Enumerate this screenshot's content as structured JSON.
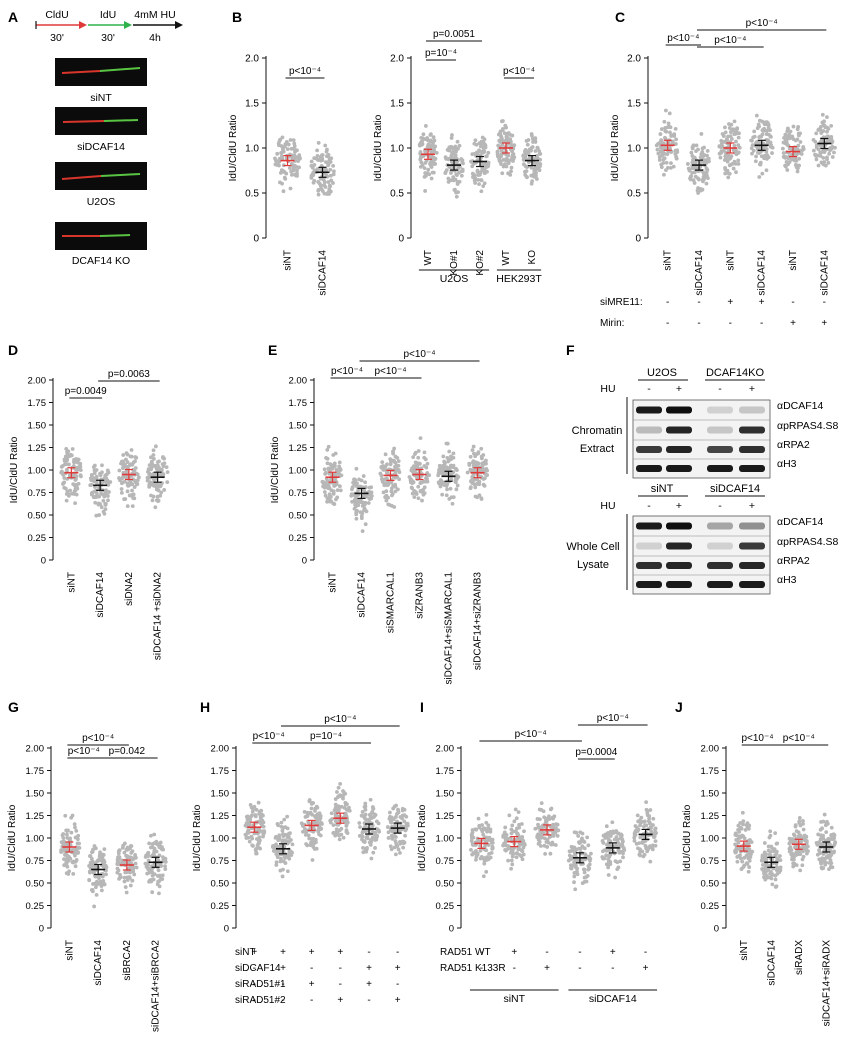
{
  "panel_letters": [
    "A",
    "B",
    "C",
    "D",
    "E",
    "F",
    "G",
    "H",
    "I",
    "J"
  ],
  "ylabel": "IdU/CldU Ratio",
  "colors": {
    "red": "#e03a3a",
    "black": "#111111",
    "dots": "#b7b7b7",
    "green": "#2fb24a",
    "fiber_red": "#d8352b",
    "fiber_green": "#59c343"
  },
  "panelA": {
    "timeline": {
      "labels": [
        "CldU",
        "IdU",
        "4mM HU"
      ],
      "durations": [
        "30'",
        "30'",
        "4h"
      ]
    },
    "fibers": [
      "siNT",
      "siDCAF14",
      "U2OS",
      "DCAF14 KO"
    ]
  },
  "panelF": {
    "top": {
      "groups": [
        "U2OS",
        "DCAF14KO"
      ],
      "hu_label": "HU",
      "hu": [
        "-",
        "+",
        "-",
        "+"
      ],
      "side_labels": [
        "Chromatin",
        "Extract"
      ],
      "bands": [
        "αDCAF14",
        "αpRPAS4.S8",
        "αRPA2",
        "αH3"
      ]
    },
    "bottom": {
      "groups": [
        "siNT",
        "siDCAF14"
      ],
      "hu_label": "HU",
      "hu": [
        "-",
        "+",
        "-",
        "+"
      ],
      "side_labels": [
        "Whole Cell",
        "Lysate"
      ],
      "bands": [
        "αDCAF14",
        "αpRPAS4.S8",
        "αRPA2",
        "αH3"
      ]
    }
  },
  "chart_data": [
    {
      "panel": "B1",
      "type": "scatter",
      "ylabel": "IdU/CldU Ratio",
      "ylim": [
        0,
        2
      ],
      "yticks": [
        "0",
        "0.5",
        "1.0",
        "1.5",
        "2.0"
      ],
      "categories": [
        "siNT",
        "siDCAF14"
      ],
      "means": [
        0.86,
        0.73
      ],
      "mean_colors": [
        "red",
        "black"
      ],
      "brackets": [
        {
          "from": 0,
          "to": 1,
          "label": "p<10⁻⁴"
        }
      ]
    },
    {
      "panel": "B2",
      "type": "scatter",
      "ylabel": "IdU/CldU Ratio",
      "ylim": [
        0,
        2
      ],
      "yticks": [
        "0",
        "0.5",
        "1.0",
        "1.5",
        "2.0"
      ],
      "categories": [
        "WT",
        "KO#1",
        "KO#2",
        "WT",
        "KO"
      ],
      "means": [
        0.93,
        0.81,
        0.85,
        1.0,
        0.86
      ],
      "mean_colors": [
        "red",
        "black",
        "black",
        "red",
        "black"
      ],
      "brackets": [
        {
          "from": 0,
          "to": 2,
          "label": "p=0.0051"
        },
        {
          "from": 0,
          "to": 1,
          "label": "p=10⁻⁴"
        },
        {
          "from": 3,
          "to": 4,
          "label": "p<10⁻⁴"
        }
      ],
      "groups": [
        {
          "label": "U2OS",
          "from": 0,
          "to": 2
        },
        {
          "label": "HEK293T",
          "from": 3,
          "to": 4
        }
      ]
    },
    {
      "panel": "C",
      "type": "scatter",
      "ylabel": "IdU/CldU Ratio",
      "ylim": [
        0,
        2
      ],
      "yticks": [
        "0",
        "0.5",
        "1.0",
        "1.5",
        "2.0"
      ],
      "categories": [
        "siNT",
        "siDCAF14",
        "siNT",
        "siDCAF14",
        "siNT",
        "siDCAF14"
      ],
      "means": [
        1.03,
        0.81,
        1.0,
        1.03,
        0.96,
        1.05
      ],
      "mean_colors": [
        "red",
        "black",
        "red",
        "black",
        "red",
        "black"
      ],
      "brackets": [
        {
          "from": 1,
          "to": 5,
          "label": "p<10⁻⁴"
        },
        {
          "from": 0,
          "to": 1,
          "label": "p<10⁻⁴"
        },
        {
          "from": 1,
          "to": 3,
          "label": "p<10⁻⁴"
        }
      ],
      "conditions": [
        {
          "label": "siMRE11:",
          "values": [
            "-",
            "-",
            "+",
            "+",
            "-",
            "-"
          ]
        },
        {
          "label": "Mirin:",
          "values": [
            "-",
            "-",
            "-",
            "-",
            "+",
            "+"
          ]
        }
      ]
    },
    {
      "panel": "D",
      "type": "scatter",
      "ylabel": "IdU/CldU Ratio",
      "ylim": [
        0,
        2
      ],
      "yticks": [
        "0",
        "0.25",
        "0.50",
        "0.75",
        "1.00",
        "1.25",
        "1.50",
        "1.75",
        "2.00"
      ],
      "categories": [
        "siNT",
        "siDCAF14",
        "siDNA2",
        "siDCAF14 +siDNA2"
      ],
      "means": [
        0.97,
        0.83,
        0.95,
        0.92
      ],
      "mean_colors": [
        "red",
        "black",
        "red",
        "black"
      ],
      "brackets": [
        {
          "from": 0,
          "to": 1,
          "label": "p=0.0049"
        },
        {
          "from": 1,
          "to": 3,
          "label": "p=0.0063"
        }
      ]
    },
    {
      "panel": "E",
      "type": "scatter",
      "ylabel": "IdU/CldU Ratio",
      "ylim": [
        0,
        2
      ],
      "yticks": [
        "0",
        "0.25",
        "0.50",
        "0.75",
        "1.00",
        "1.25",
        "1.50",
        "1.75",
        "2.00"
      ],
      "categories": [
        "siNT",
        "siDCAF14",
        "siSMARCAL1",
        "siZRANB3",
        "siDCAF14+siSMARCAL1",
        "siDCAF14+siZRANB3"
      ],
      "means": [
        0.92,
        0.74,
        0.94,
        0.95,
        0.93,
        0.97
      ],
      "mean_colors": [
        "red",
        "black",
        "red",
        "red",
        "black",
        "red"
      ],
      "brackets": [
        {
          "from": 1,
          "to": 5,
          "label": "p<10⁻⁴"
        },
        {
          "from": 0,
          "to": 1,
          "label": "p<10⁻⁴"
        },
        {
          "from": 1,
          "to": 3,
          "label": "p<10⁻⁴"
        }
      ]
    },
    {
      "panel": "G",
      "type": "scatter",
      "ylabel": "IdU/CldU Ratio",
      "ylim": [
        0,
        2
      ],
      "yticks": [
        "0",
        "0.25",
        "0.50",
        "0.75",
        "1.00",
        "1.25",
        "1.50",
        "1.75",
        "2.00"
      ],
      "categories": [
        "siNT",
        "siDCAF14",
        "siBRCA2",
        "siDCAF14+siBRCA2"
      ],
      "means": [
        0.9,
        0.65,
        0.7,
        0.73
      ],
      "mean_colors": [
        "red",
        "black",
        "red",
        "black"
      ],
      "brackets": [
        {
          "from": 0,
          "to": 2,
          "label": "p<10⁻⁴"
        },
        {
          "from": 0,
          "to": 1,
          "label": "p<10⁻⁴"
        },
        {
          "from": 1,
          "to": 3,
          "label": "p=0.042"
        }
      ]
    },
    {
      "panel": "H",
      "type": "scatter",
      "ylabel": "IdU/CldU Ratio",
      "ylim": [
        0,
        2
      ],
      "yticks": [
        "0",
        "0.25",
        "0.50",
        "0.75",
        "1.00",
        "1.25",
        "1.50",
        "1.75",
        "2.00"
      ],
      "categories": [
        "1",
        "2",
        "3",
        "4",
        "5",
        "6"
      ],
      "means": [
        1.12,
        0.88,
        1.14,
        1.22,
        1.1,
        1.11
      ],
      "mean_colors": [
        "red",
        "black",
        "red",
        "red",
        "black",
        "black"
      ],
      "brackets": [
        {
          "from": 1,
          "to": 5,
          "label": "p<10⁻⁴"
        },
        {
          "from": 0,
          "to": 1,
          "label": "p<10⁻⁴"
        },
        {
          "from": 1,
          "to": 4,
          "label": "p=10⁻⁴"
        }
      ],
      "conditions": [
        {
          "label": "siNT",
          "values": [
            "+",
            "+",
            "+",
            "+",
            "-",
            "-"
          ]
        },
        {
          "label": "siDCAF14",
          "values": [
            "-",
            "+",
            "-",
            "-",
            "+",
            "+"
          ]
        },
        {
          "label": "siRAD51#1",
          "values": [
            "-",
            "-",
            "+",
            "-",
            "+",
            "-"
          ]
        },
        {
          "label": "siRAD51#2",
          "values": [
            "-",
            "-",
            "-",
            "+",
            "-",
            "+"
          ]
        }
      ]
    },
    {
      "panel": "I",
      "type": "scatter",
      "ylabel": "IdU/CldU Ratio",
      "ylim": [
        0,
        2
      ],
      "yticks": [
        "0",
        "0.25",
        "0.50",
        "0.75",
        "1.00",
        "1.25",
        "1.50",
        "1.75",
        "2.00"
      ],
      "categories": [
        "1",
        "2",
        "3",
        "4",
        "5",
        "6"
      ],
      "means": [
        0.94,
        0.96,
        1.09,
        0.78,
        0.89,
        1.04
      ],
      "mean_colors": [
        "red",
        "red",
        "red",
        "black",
        "black",
        "black"
      ],
      "brackets": [
        {
          "from": 3,
          "to": 5,
          "label": "p<10⁻⁴"
        },
        {
          "from": 0,
          "to": 3,
          "label": "p<10⁻⁴"
        },
        {
          "from": 3,
          "to": 4,
          "label": "p=0.0004"
        }
      ],
      "conditions": [
        {
          "label": "RAD51 WT",
          "values": [
            "-",
            "+",
            "-",
            "-",
            "+",
            "-"
          ]
        },
        {
          "label": "RAD51 K133R",
          "values": [
            "-",
            "-",
            "+",
            "-",
            "-",
            "+"
          ]
        }
      ],
      "groups": [
        {
          "label": "siNT",
          "from": 0,
          "to": 2
        },
        {
          "label": "siDCAF14",
          "from": 3,
          "to": 5
        }
      ]
    },
    {
      "panel": "J",
      "type": "scatter",
      "ylabel": "IdU/CldU Ratio",
      "ylim": [
        0,
        2
      ],
      "yticks": [
        "0",
        "0.25",
        "0.50",
        "0.75",
        "1.00",
        "1.25",
        "1.50",
        "1.75",
        "2.00"
      ],
      "categories": [
        "siNT",
        "siDCAF14",
        "siRADX",
        "siDCAF14+siRADX"
      ],
      "means": [
        0.91,
        0.73,
        0.93,
        0.9
      ],
      "mean_colors": [
        "red",
        "black",
        "red",
        "black"
      ],
      "brackets": [
        {
          "from": 0,
          "to": 1,
          "label": "p<10⁻⁴"
        },
        {
          "from": 1,
          "to": 3,
          "label": "p<10⁻⁴"
        }
      ]
    }
  ]
}
